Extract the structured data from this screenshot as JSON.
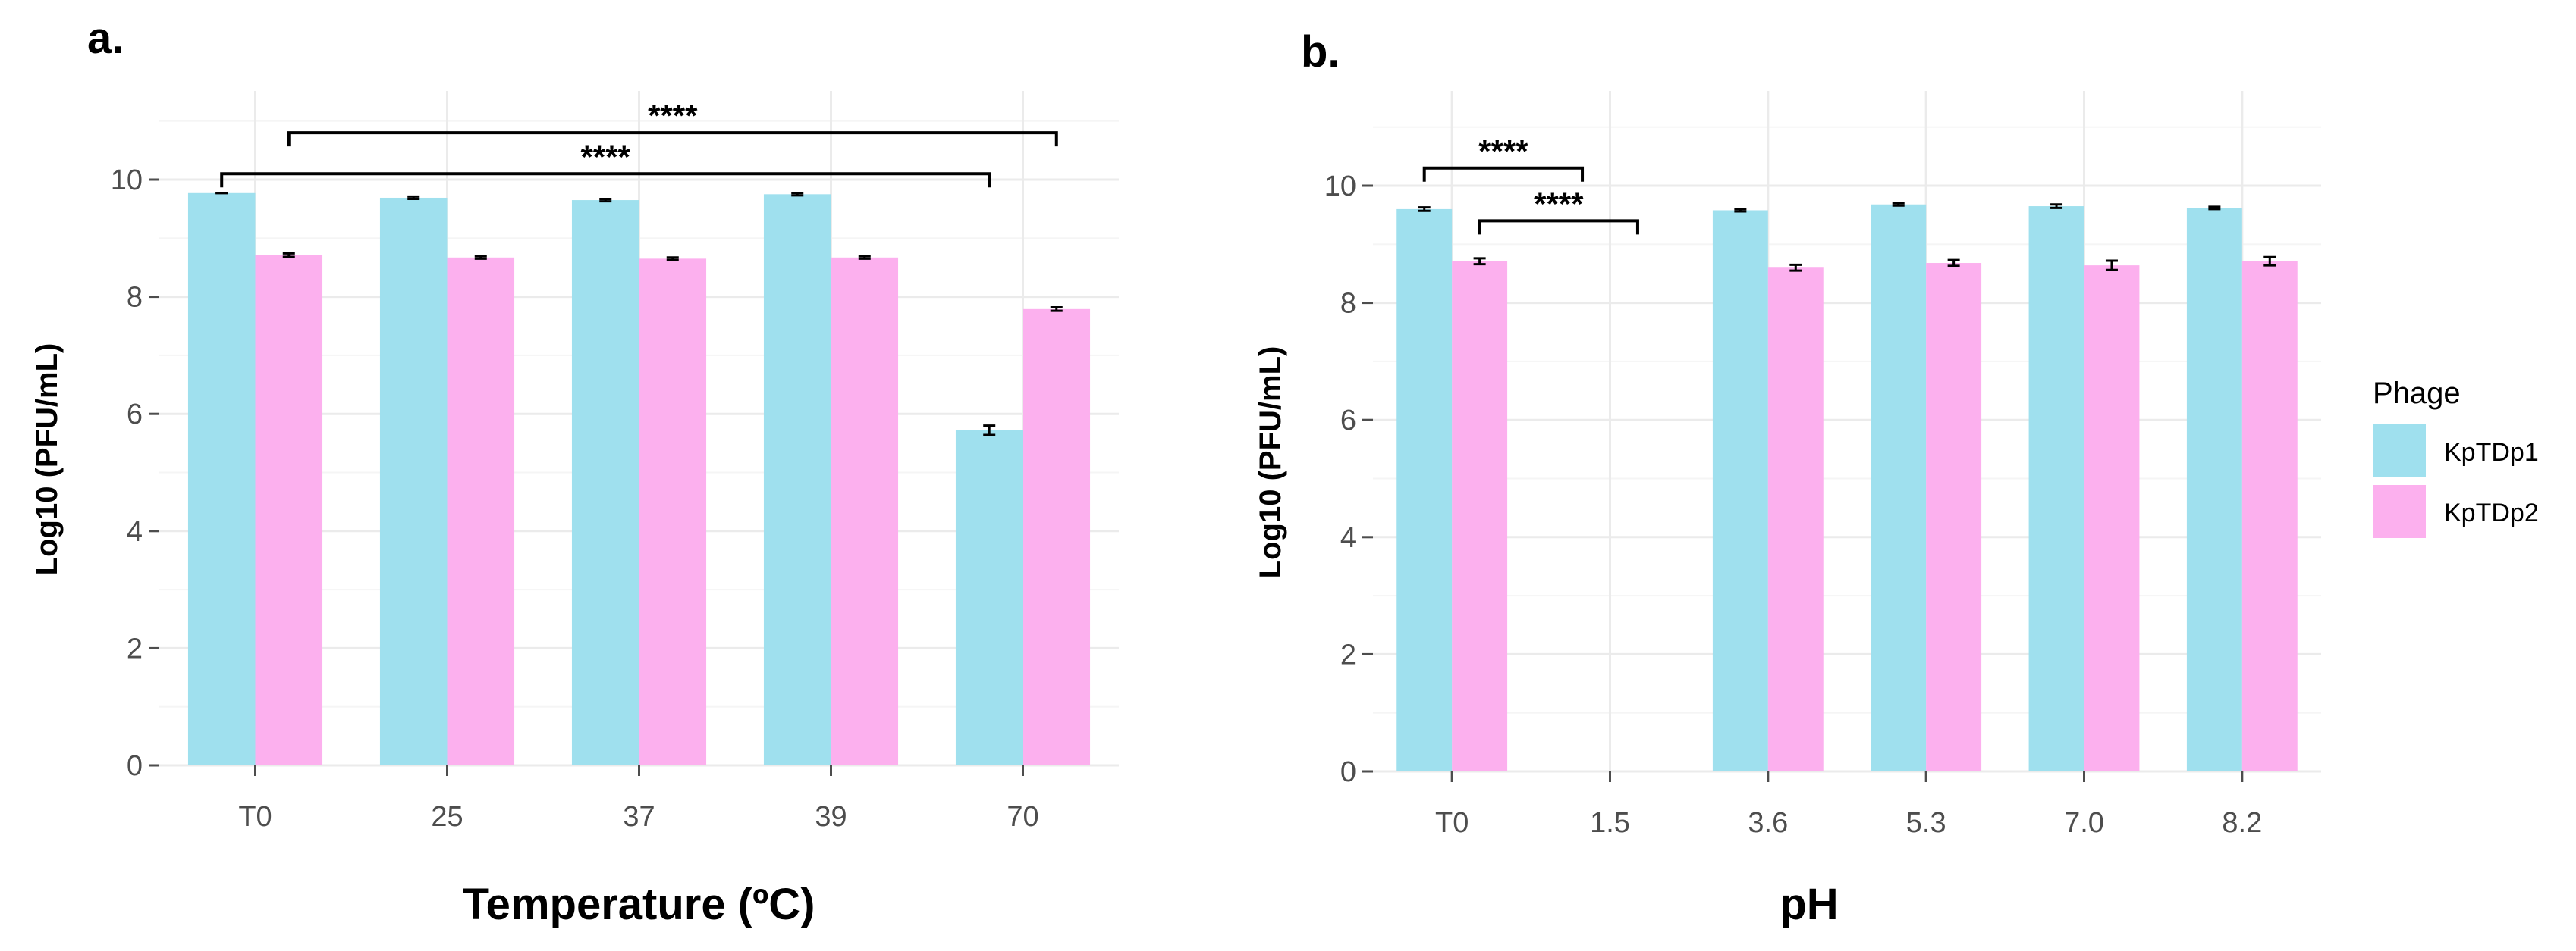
{
  "colors": {
    "KpTDp1": "#9fe0ee",
    "KpTDp2": "#fcb0ee",
    "grid_major": "#ebebeb",
    "grid_minor": "#f5f5f5"
  },
  "legend": {
    "title": "Phage",
    "items": [
      {
        "label": "KpTDp1",
        "color": "#9fe0ee"
      },
      {
        "label": "KpTDp2",
        "color": "#fcb0ee"
      }
    ]
  },
  "chart_data": [
    {
      "panel": "a.",
      "type": "bar",
      "xlabel": "Temperature (ºC)",
      "ylabel": "Log10 (PFU/mL)",
      "ylim": [
        0,
        11
      ],
      "yticks": [
        0,
        2,
        4,
        6,
        8,
        10
      ],
      "grid": true,
      "categories": [
        "T0",
        "25",
        "37",
        "39",
        "70"
      ],
      "series": [
        {
          "name": "KpTDp1",
          "values": [
            9.77,
            9.69,
            9.65,
            9.75,
            5.72
          ],
          "errors": [
            0.0,
            0.02,
            0.02,
            0.02,
            0.08
          ]
        },
        {
          "name": "KpTDp2",
          "values": [
            8.71,
            8.67,
            8.65,
            8.67,
            7.79
          ],
          "errors": [
            0.03,
            0.02,
            0.02,
            0.02,
            0.03
          ]
        }
      ],
      "annotations": [
        {
          "label": "****",
          "from": {
            "category": 0,
            "series": 1
          },
          "to": {
            "category": 4,
            "series": 1
          },
          "y": 10.8
        },
        {
          "label": "****",
          "from": {
            "category": 0,
            "series": 0
          },
          "to": {
            "category": 4,
            "series": 0
          },
          "y": 10.1
        }
      ]
    },
    {
      "panel": "b.",
      "type": "bar",
      "xlabel": "pH",
      "ylabel": "Log10 (PFU/mL)",
      "ylim": [
        0,
        11
      ],
      "yticks": [
        0,
        2,
        4,
        6,
        8,
        10
      ],
      "grid": true,
      "categories": [
        "T0",
        "1.5",
        "3.6",
        "5.3",
        "7.0",
        "8.2"
      ],
      "series": [
        {
          "name": "KpTDp1",
          "values": [
            9.6,
            0,
            9.58,
            9.68,
            9.65,
            9.62
          ],
          "errors": [
            0.03,
            0,
            0.02,
            0.02,
            0.03,
            0.02
          ]
        },
        {
          "name": "KpTDp2",
          "values": [
            8.71,
            0,
            8.6,
            8.68,
            8.64,
            8.71
          ],
          "errors": [
            0.05,
            0,
            0.05,
            0.05,
            0.08,
            0.07
          ]
        }
      ],
      "annotations": [
        {
          "label": "****",
          "from": {
            "category": 0,
            "series": 0
          },
          "to": {
            "category": 1,
            "series": 0
          },
          "y": 10.3
        },
        {
          "label": "****",
          "from": {
            "category": 0,
            "series": 1
          },
          "to": {
            "category": 1,
            "series": 1
          },
          "y": 9.4
        }
      ]
    }
  ]
}
